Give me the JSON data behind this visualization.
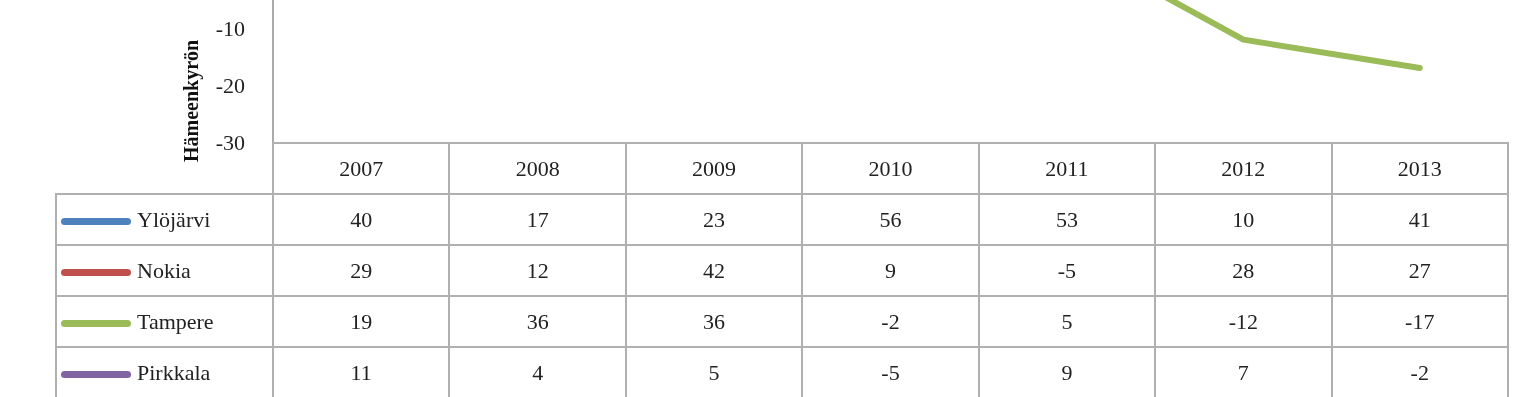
{
  "chart_data": {
    "type": "line",
    "ylabel": "Hämeenkyrön",
    "categories": [
      "2007",
      "2008",
      "2009",
      "2010",
      "2011",
      "2012",
      "2013"
    ],
    "series": [
      {
        "name": "Ylöjärvi",
        "color": "#4f81bd",
        "values": [
          null,
          null,
          null,
          null,
          null,
          null,
          null
        ],
        "value_labels": [
          "40",
          "17",
          "23",
          "56",
          "53",
          "10",
          "41"
        ]
      },
      {
        "name": "Nokia",
        "color": "#c0504d",
        "values": [
          null,
          null,
          null,
          null,
          null,
          null,
          null
        ],
        "value_labels": [
          "29",
          "12",
          "42",
          "9",
          "-5",
          "28",
          "27"
        ]
      },
      {
        "name": "Tampere",
        "color": "#9bbb59",
        "values": [
          null,
          null,
          null,
          null,
          5,
          -12,
          -17
        ],
        "value_labels": [
          "19",
          "36",
          "36",
          "-2",
          "5",
          "-12",
          "-17"
        ]
      },
      {
        "name": "Pirkkala",
        "color": "#8064a2",
        "values": [
          null,
          null,
          null,
          null,
          null,
          null,
          null
        ],
        "value_labels": [
          "11",
          "4",
          "5",
          "-5",
          "9",
          "7",
          "-2"
        ]
      }
    ],
    "ylim": [
      -30,
      5
    ],
    "yticks": [
      -30,
      -20,
      -10
    ],
    "grid": false,
    "legend": "bottom",
    "marker": "none",
    "line_style": "solid"
  }
}
